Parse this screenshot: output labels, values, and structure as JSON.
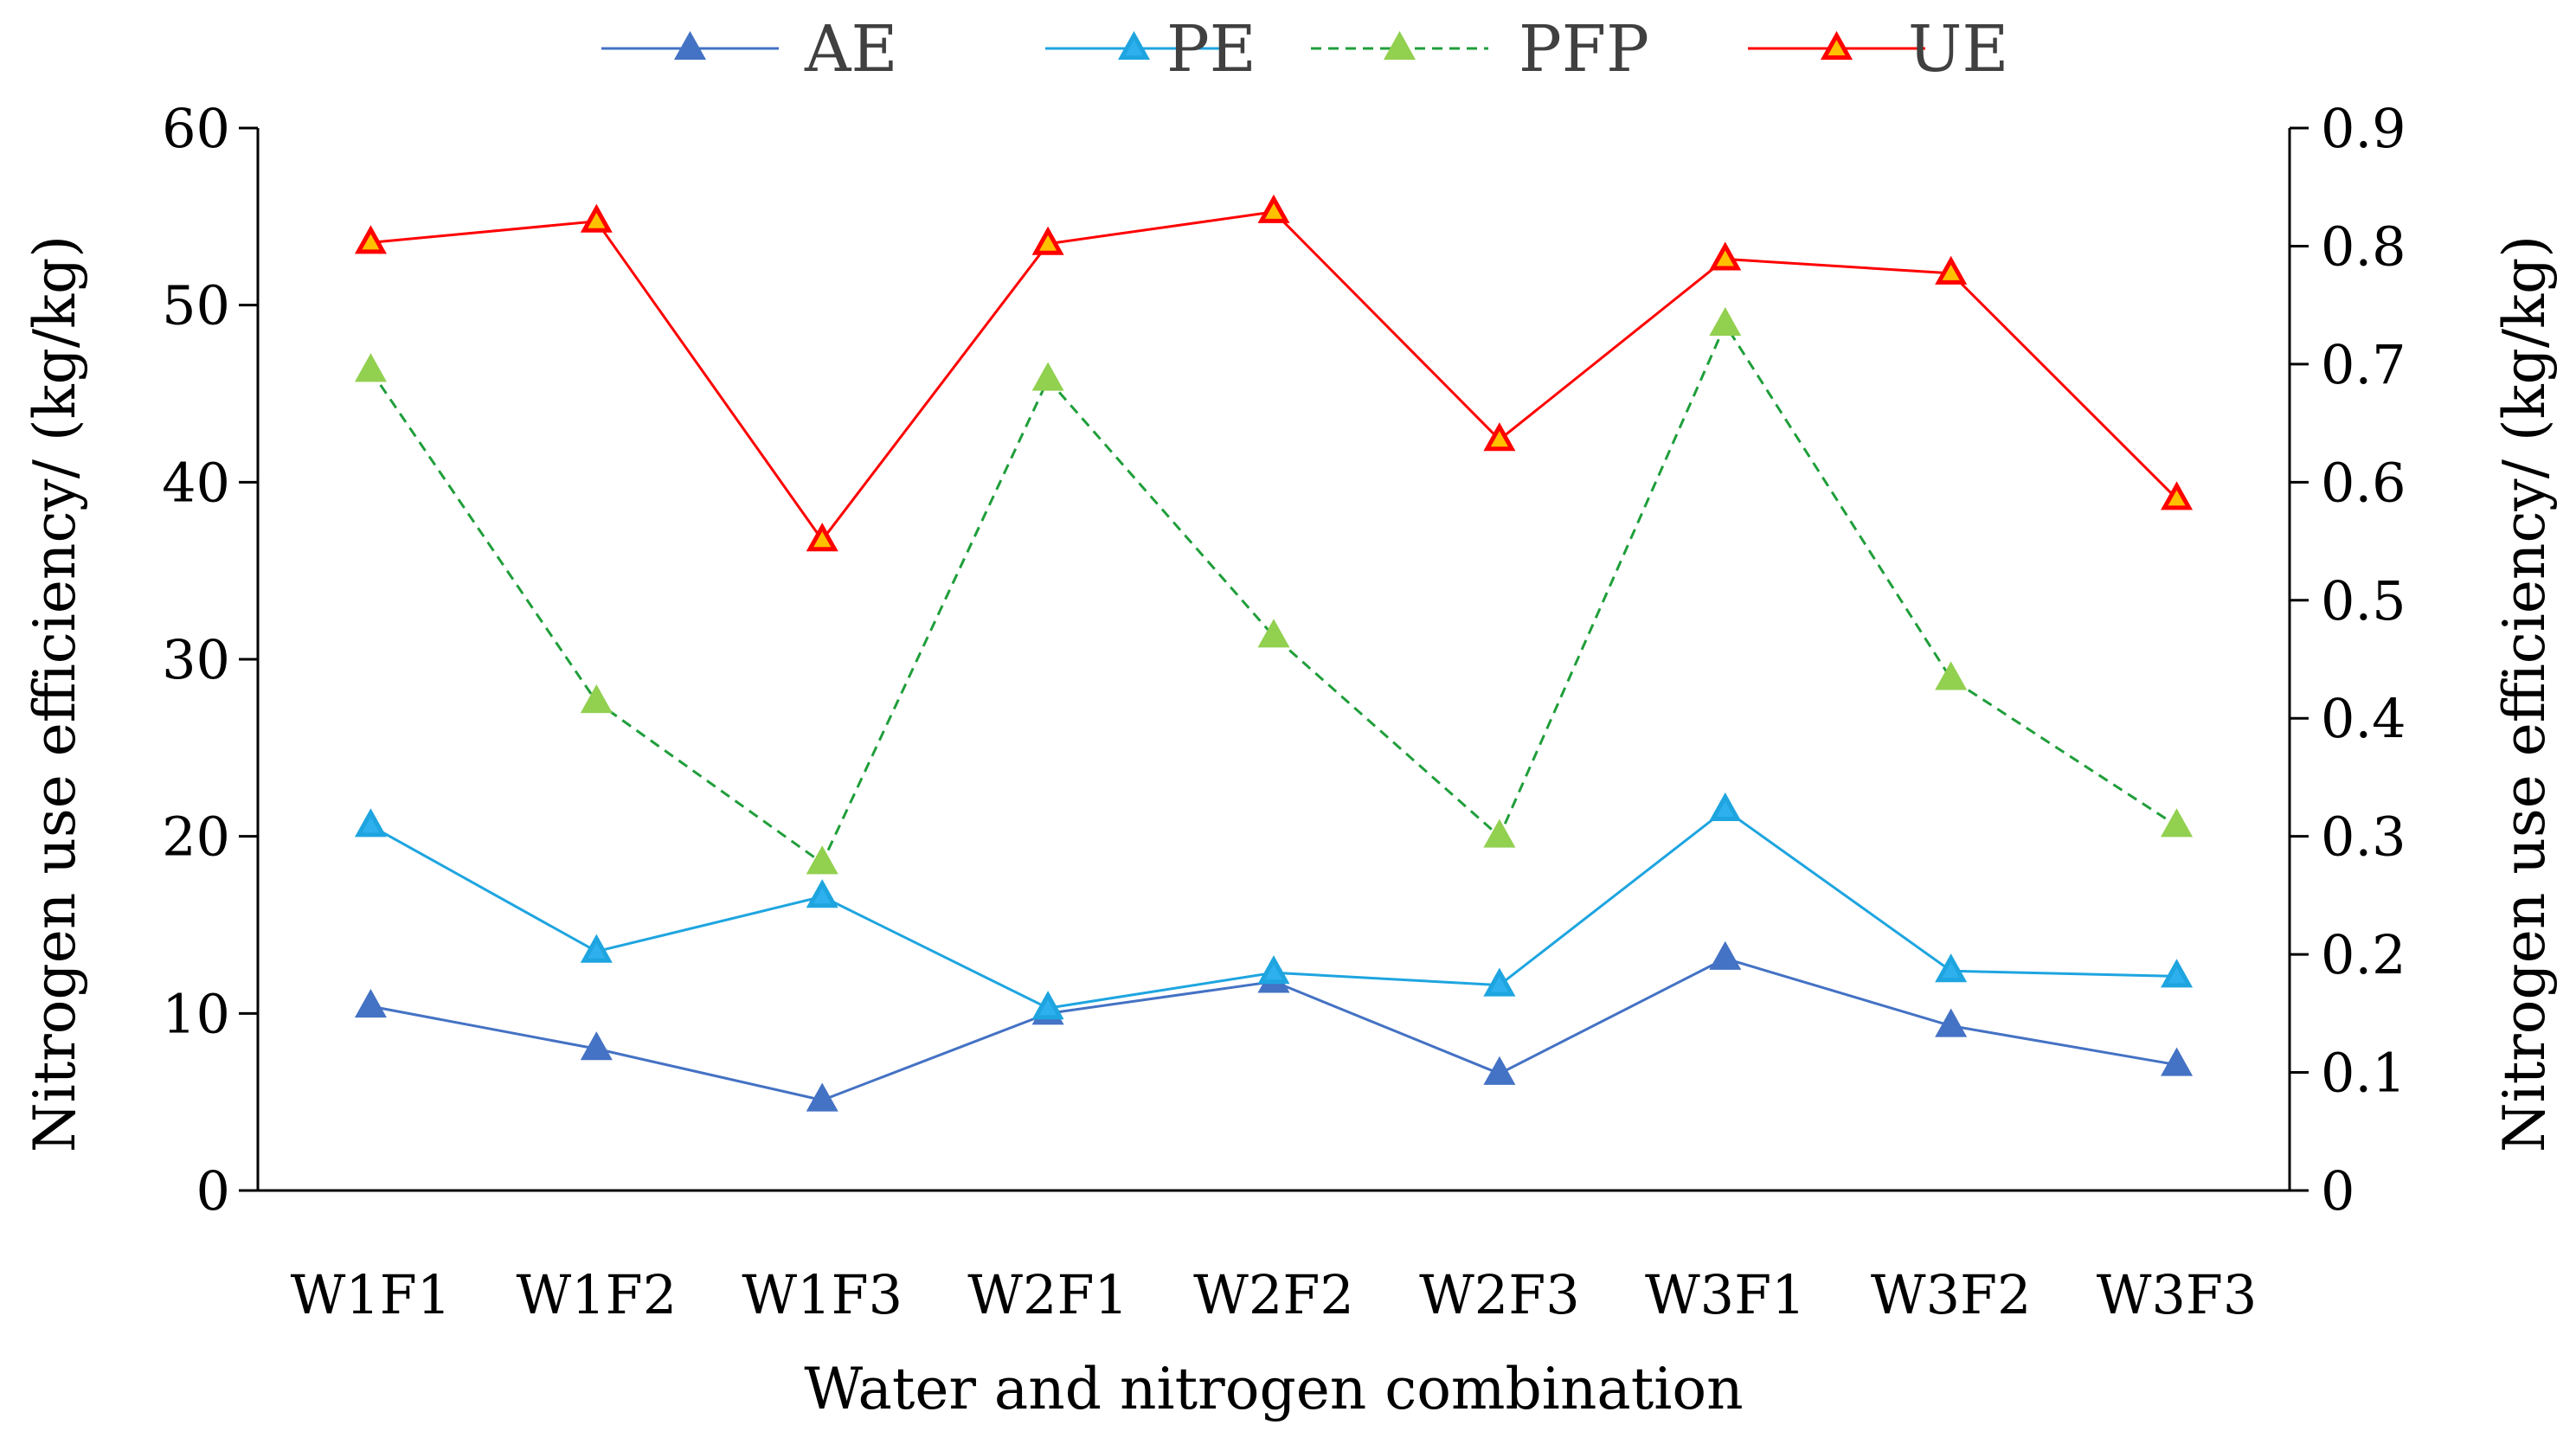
{
  "chart_data": {
    "type": "line",
    "categories": [
      "W1F1",
      "W1F2",
      "W1F3",
      "W2F1",
      "W2F2",
      "W2F3",
      "W3F1",
      "W3F2",
      "W3F3"
    ],
    "xlabel": "Water and nitrogen combination",
    "ylabel_left": "Nitrogen use efficiency/  (kg/kg)",
    "ylabel_right": "Nitrogen use efficiency/  (kg/kg)",
    "ylim_left": [
      0,
      60
    ],
    "ylim_right": [
      0,
      0.9
    ],
    "yticks_left": [
      "0",
      "10",
      "20",
      "30",
      "40",
      "50",
      "60"
    ],
    "yticks_right": [
      "0",
      "0.1",
      "0.2",
      "0.3",
      "0.4",
      "0.5",
      "0.6",
      "0.7",
      "0.8",
      "0.9"
    ],
    "legend_position": "top",
    "series": [
      {
        "name": "AE",
        "axis": "left",
        "color": "#4472C4",
        "marker_fill": "#4472C4",
        "marker_edge": "#4472C4",
        "dashed": false,
        "values": [
          10.4,
          8.0,
          5.1,
          10.0,
          11.8,
          6.6,
          13.1,
          9.3,
          7.1
        ]
      },
      {
        "name": "PE",
        "axis": "left",
        "color": "#1EA5E0",
        "marker_fill": "#2EB0EE",
        "marker_edge": "#1EA5E0",
        "dashed": false,
        "values": [
          20.6,
          13.5,
          16.6,
          10.3,
          12.3,
          11.6,
          21.5,
          12.4,
          12.1
        ]
      },
      {
        "name": "PFP",
        "axis": "left",
        "color": "#1F9E3A",
        "marker_fill": "#92D050",
        "marker_edge": "#92D050",
        "dashed": true,
        "values": [
          46.3,
          27.6,
          18.5,
          45.8,
          31.3,
          20.0,
          48.9,
          28.9,
          20.6
        ]
      },
      {
        "name": "UE",
        "axis": "right",
        "color": "#FF0000",
        "marker_fill": "#FFC000",
        "marker_edge": "#FF0000",
        "dashed": false,
        "values": [
          0.803,
          0.821,
          0.551,
          0.802,
          0.829,
          0.636,
          0.789,
          0.777,
          0.586
        ]
      }
    ]
  }
}
